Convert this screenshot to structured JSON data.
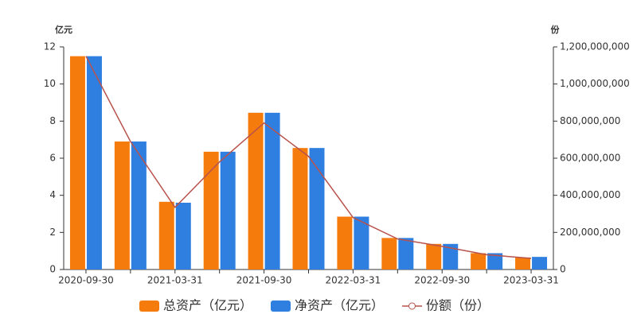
{
  "chart_data": {
    "type": "bar-line",
    "y_label": "亿元",
    "y2_label": "份",
    "categories": [
      "2020-09-30",
      null,
      "2021-03-31",
      null,
      "2021-09-30",
      null,
      "2022-03-31",
      null,
      "2022-09-30",
      null,
      "2023-03-31"
    ],
    "series": [
      {
        "name": "总资产（亿元）",
        "type": "bar",
        "color": "#f57c0c",
        "values": [
          11.5,
          6.9,
          3.65,
          6.35,
          8.45,
          6.55,
          2.85,
          1.7,
          1.38,
          0.88,
          0.65
        ]
      },
      {
        "name": "净资产（亿元）",
        "type": "bar",
        "color": "#2f7fe0",
        "values": [
          11.5,
          6.9,
          3.6,
          6.35,
          8.45,
          6.55,
          2.85,
          1.7,
          1.38,
          0.88,
          0.68
        ]
      },
      {
        "name": "份额（份）",
        "type": "line",
        "axis": "y2",
        "color": "#b8524c",
        "values": [
          1150000000,
          690000000,
          335000000,
          580000000,
          790000000,
          610000000,
          280000000,
          165000000,
          125000000,
          80000000,
          60000000
        ]
      }
    ],
    "ylim": [
      0,
      12
    ],
    "yticks": [
      0,
      2,
      4,
      6,
      8,
      10,
      12
    ],
    "y2lim": [
      0,
      1200000000
    ],
    "y2ticks": [
      0,
      {
        "value": 200000000,
        "label": "200,000,000"
      },
      {
        "value": 400000000,
        "label": "400,000,000"
      },
      {
        "value": 600000000,
        "label": "600,000,000"
      },
      {
        "value": 800000000,
        "label": "800,000,000"
      },
      {
        "value": 1000000000,
        "label": "1,000,000,000"
      },
      {
        "value": 1200000000,
        "label": "1,200,000,000"
      }
    ],
    "legend": "bottom"
  }
}
